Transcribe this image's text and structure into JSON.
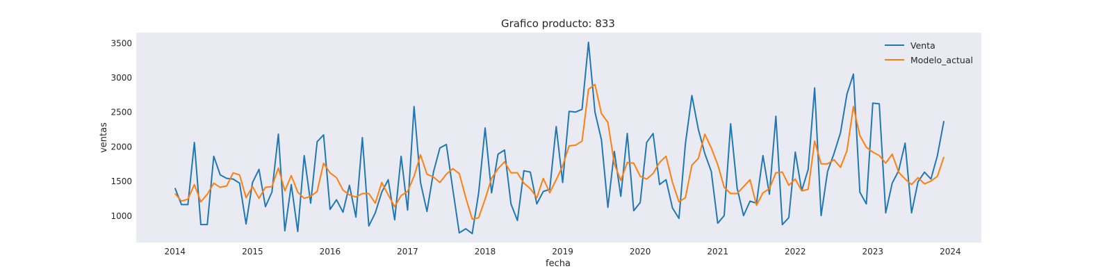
{
  "chart_data": {
    "type": "line",
    "title": "Grafico producto: 833",
    "xlabel": "fecha",
    "ylabel": "ventas",
    "x_start": "2014-01",
    "x_frequency": "monthly",
    "xlim": [
      2013.5,
      2024.4
    ],
    "ylim": [
      610,
      3650
    ],
    "x_ticks": [
      2014,
      2015,
      2016,
      2017,
      2018,
      2019,
      2020,
      2021,
      2022,
      2023,
      2024
    ],
    "y_ticks": [
      1000,
      1500,
      2000,
      2500,
      3000,
      3500
    ],
    "grid": false,
    "legend_position": "top-right",
    "series": [
      {
        "name": "Venta",
        "color": "#1f77b4",
        "values": [
          1400,
          1160,
          1160,
          2060,
          870,
          870,
          1860,
          1590,
          1540,
          1530,
          1470,
          880,
          1480,
          1670,
          1130,
          1340,
          2180,
          780,
          1450,
          770,
          1870,
          1180,
          2070,
          2170,
          1090,
          1230,
          1050,
          1440,
          980,
          2130,
          850,
          1040,
          1340,
          1520,
          940,
          1860,
          1080,
          2580,
          1480,
          1060,
          1630,
          1980,
          2030,
          1380,
          750,
          810,
          740,
          1330,
          2270,
          1330,
          1890,
          1950,
          1170,
          930,
          1650,
          1630,
          1170,
          1350,
          1380,
          2290,
          1480,
          2510,
          2500,
          2540,
          3510,
          2500,
          2100,
          1120,
          1930,
          1280,
          2190,
          1070,
          1190,
          2060,
          2190,
          1450,
          1520,
          1110,
          960,
          2040,
          2740,
          2250,
          1900,
          1640,
          890,
          1000,
          2330,
          1400,
          1000,
          1210,
          1180,
          1870,
          1310,
          2440,
          870,
          970,
          1920,
          1360,
          1670,
          2850,
          1000,
          1640,
          1900,
          2200,
          2760,
          3050,
          1340,
          1170,
          2630,
          2620,
          1040,
          1470,
          1650,
          2050,
          1040,
          1490,
          1630,
          1530,
          1870,
          2370
        ]
      },
      {
        "name": "Modelo_actual",
        "color": "#ff7f0e",
        "values": [
          1320,
          1210,
          1240,
          1450,
          1200,
          1310,
          1470,
          1410,
          1430,
          1620,
          1590,
          1260,
          1420,
          1250,
          1410,
          1420,
          1690,
          1360,
          1580,
          1340,
          1250,
          1280,
          1350,
          1760,
          1620,
          1550,
          1370,
          1300,
          1270,
          1320,
          1320,
          1180,
          1480,
          1300,
          1130,
          1290,
          1350,
          1570,
          1880,
          1600,
          1560,
          1480,
          1600,
          1680,
          1610,
          1260,
          950,
          970,
          1240,
          1540,
          1680,
          1780,
          1620,
          1620,
          1470,
          1390,
          1260,
          1540,
          1330,
          1520,
          1720,
          2010,
          2020,
          2080,
          2830,
          2900,
          2480,
          2350,
          1750,
          1510,
          1770,
          1760,
          1570,
          1530,
          1610,
          1770,
          1860,
          1480,
          1200,
          1260,
          1730,
          1830,
          2180,
          1980,
          1740,
          1410,
          1320,
          1320,
          1420,
          1520,
          1150,
          1330,
          1390,
          1620,
          1630,
          1440,
          1530,
          1360,
          1380,
          2080,
          1750,
          1750,
          1810,
          1700,
          1940,
          2580,
          2160,
          1990,
          1920,
          1870,
          1760,
          1890,
          1630,
          1530,
          1450,
          1550,
          1460,
          1500,
          1570,
          1850
        ]
      }
    ]
  }
}
